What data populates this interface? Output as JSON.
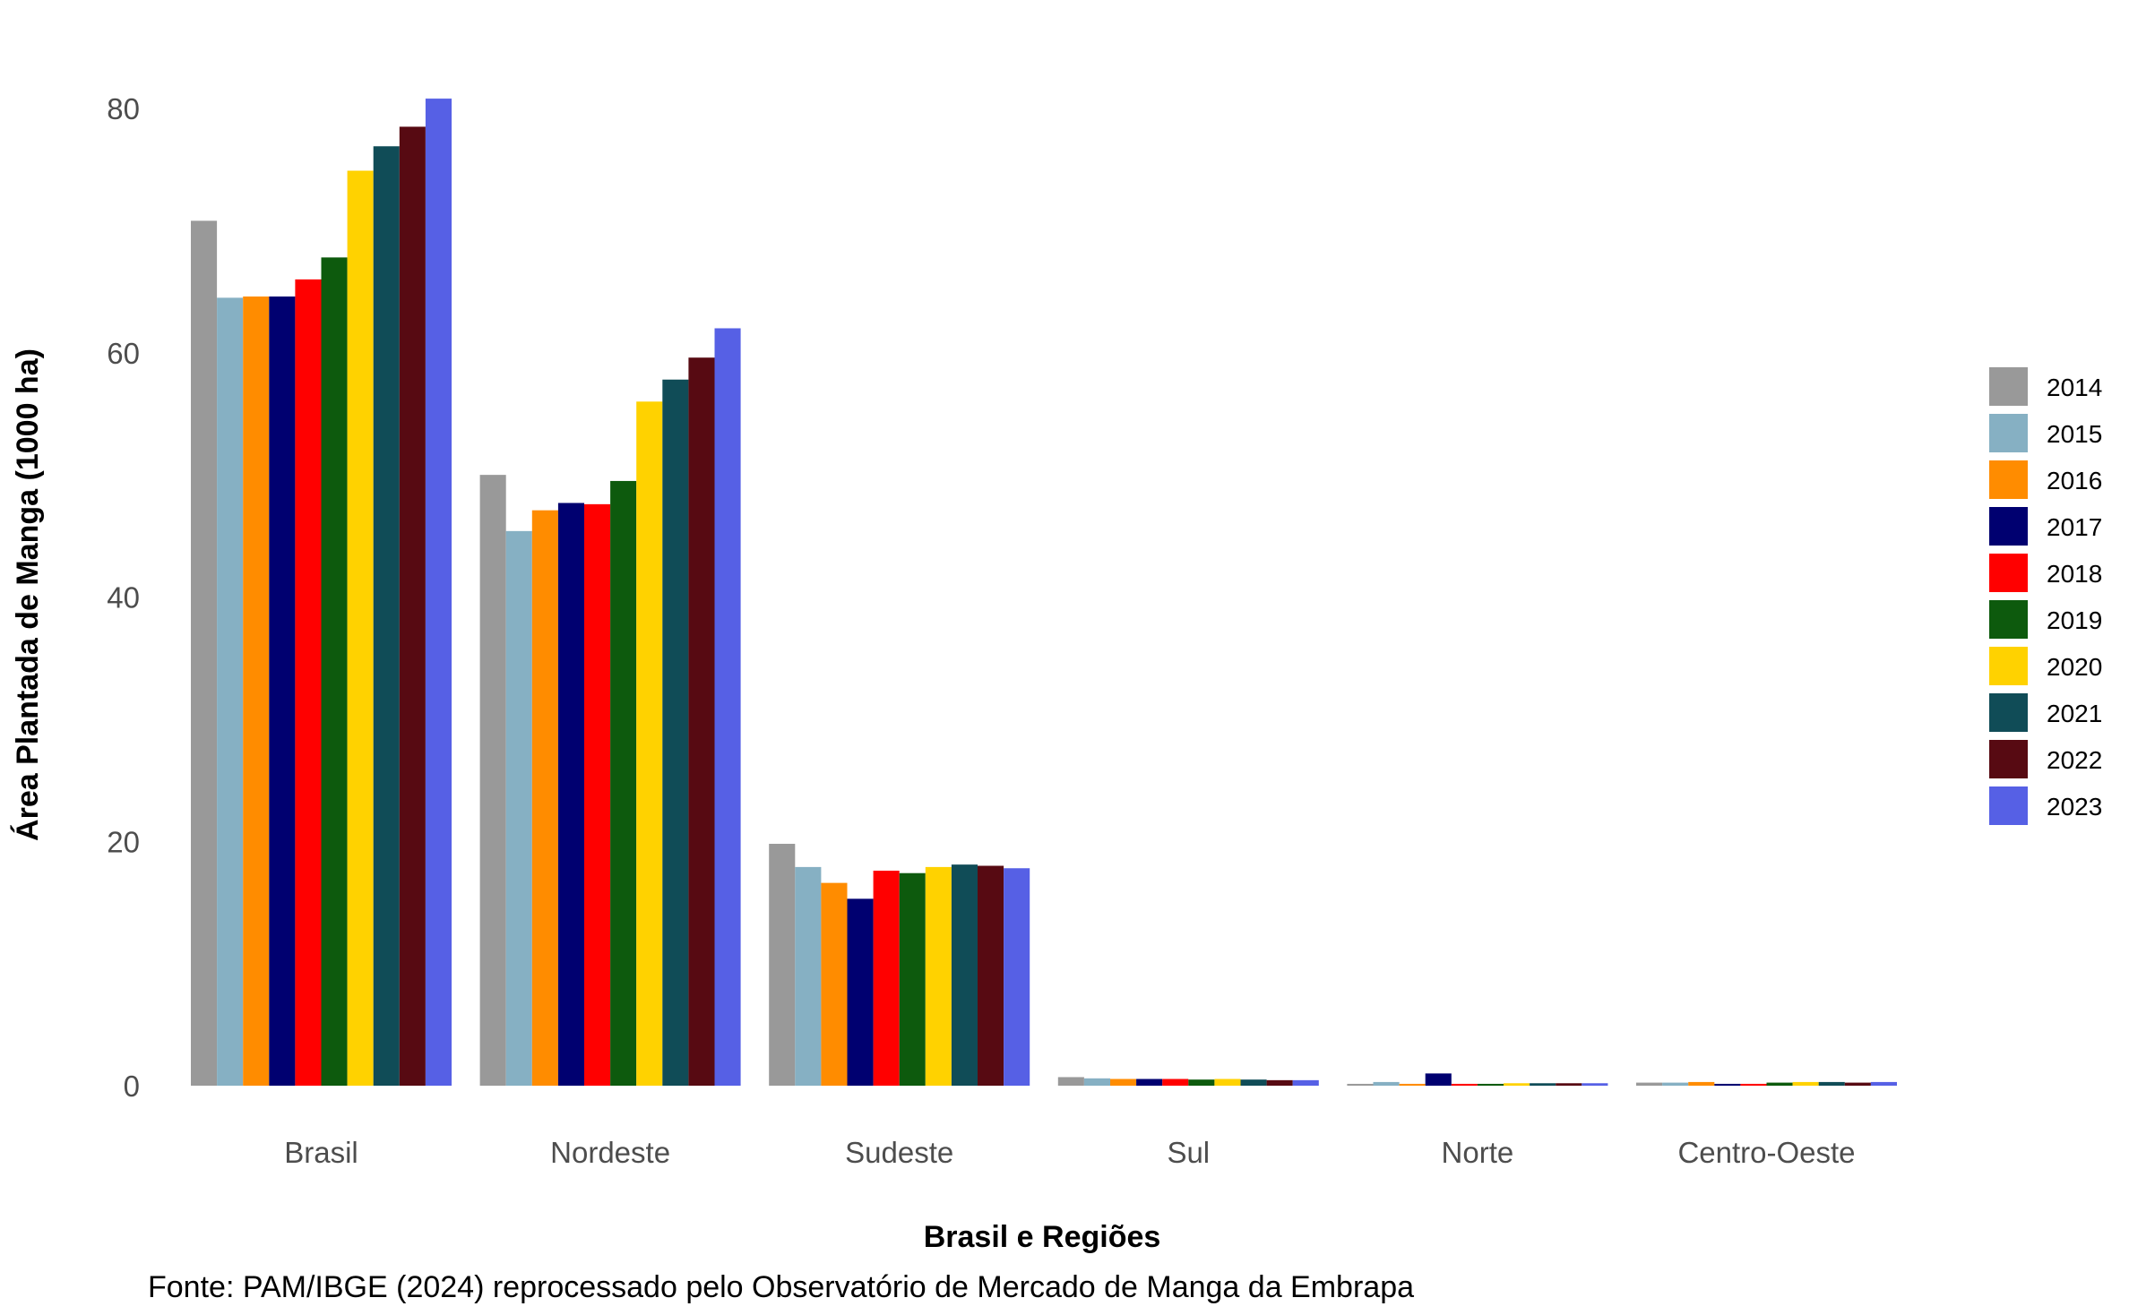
{
  "chart_data": {
    "type": "bar",
    "xlabel": "Brasil e Regiões",
    "ylabel": "Área Plantada de Manga (1000 ha)",
    "caption": "Fonte: PAM/IBGE (2024) reprocessado pelo Observatório de Mercado de Manga da Embrapa",
    "categories": [
      "Brasil",
      "Nordeste",
      "Sudeste",
      "Sul",
      "Norte",
      "Centro-Oeste"
    ],
    "ylim": [
      0,
      80
    ],
    "y_ticks": [
      "0",
      "20",
      "40",
      "60",
      "80"
    ],
    "y_tick_values": [
      0,
      20,
      40,
      60,
      80
    ],
    "grid": false,
    "legend_position": "right",
    "series": [
      {
        "name": "2014",
        "color": "#999999",
        "values": [
          70.8,
          50.0,
          19.8,
          0.7,
          0.15,
          0.25
        ]
      },
      {
        "name": "2015",
        "color": "#86B0C3",
        "values": [
          64.5,
          45.4,
          17.9,
          0.6,
          0.3,
          0.25
        ]
      },
      {
        "name": "2016",
        "color": "#FF8C00",
        "values": [
          64.6,
          47.1,
          16.6,
          0.55,
          0.15,
          0.3
        ]
      },
      {
        "name": "2017",
        "color": "#000070",
        "values": [
          64.6,
          47.7,
          15.3,
          0.55,
          1.0,
          0.15
        ]
      },
      {
        "name": "2018",
        "color": "#FF0000",
        "values": [
          66.0,
          47.6,
          17.6,
          0.55,
          0.15,
          0.15
        ]
      },
      {
        "name": "2019",
        "color": "#0D5A0D",
        "values": [
          67.8,
          49.5,
          17.4,
          0.5,
          0.15,
          0.25
        ]
      },
      {
        "name": "2020",
        "color": "#FFD200",
        "values": [
          74.9,
          56.0,
          17.9,
          0.55,
          0.2,
          0.3
        ]
      },
      {
        "name": "2021",
        "color": "#104C57",
        "values": [
          76.9,
          57.8,
          18.1,
          0.5,
          0.2,
          0.3
        ]
      },
      {
        "name": "2022",
        "color": "#570A12",
        "values": [
          78.5,
          59.6,
          18.0,
          0.45,
          0.2,
          0.25
        ]
      },
      {
        "name": "2023",
        "color": "#5660E5",
        "values": [
          80.8,
          62.0,
          17.8,
          0.45,
          0.2,
          0.3
        ]
      }
    ]
  }
}
